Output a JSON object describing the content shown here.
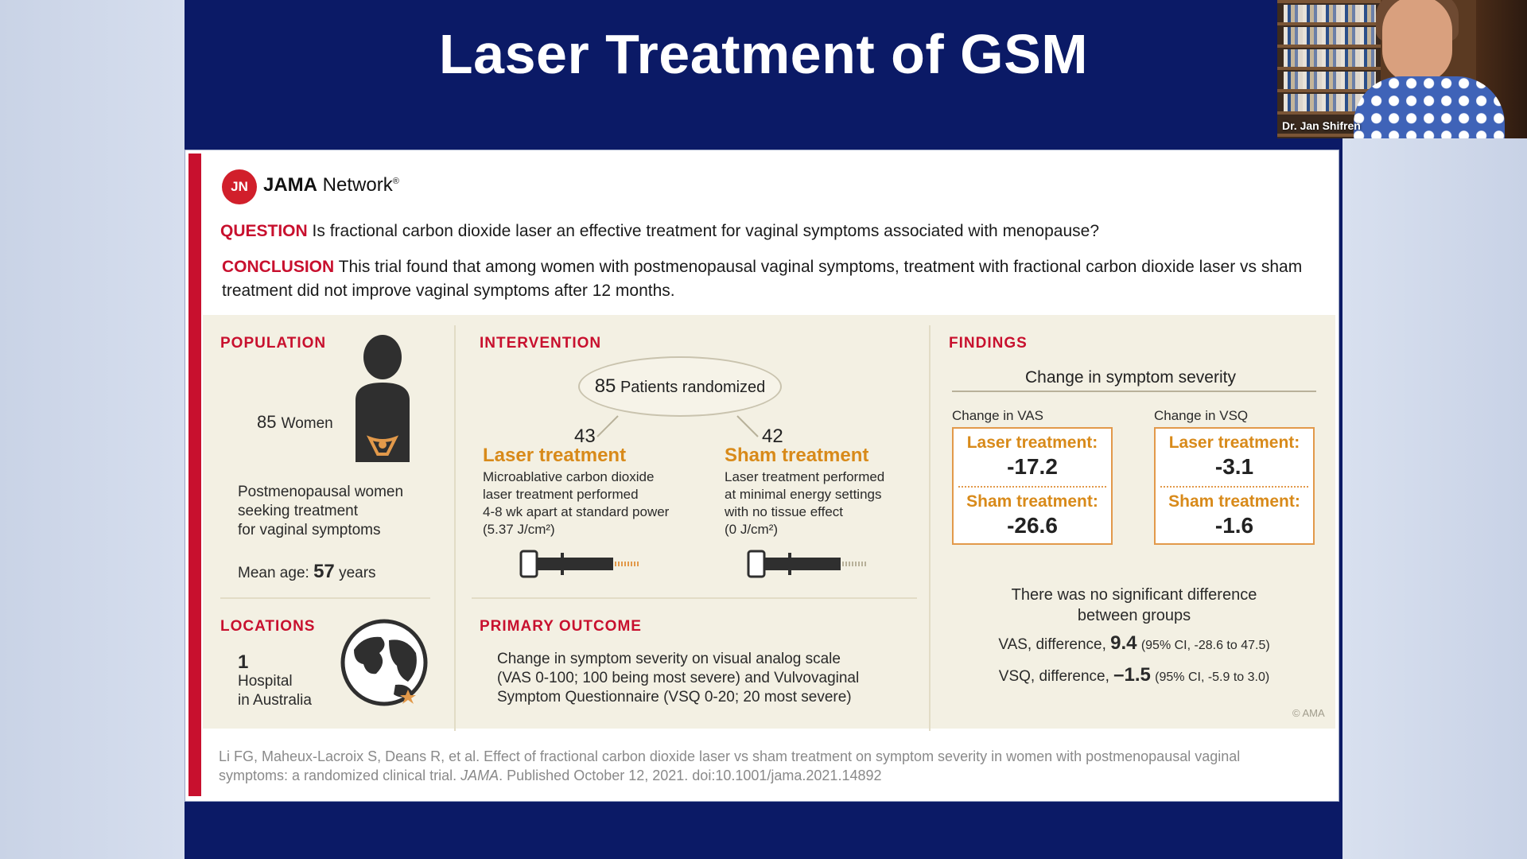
{
  "slide": {
    "title": "Laser Treatment of GSM"
  },
  "video": {
    "caller_name": "Dr. Jan Shifren"
  },
  "brand": {
    "logo": "JN",
    "name_bold": "JAMA",
    "name_rest": " Network",
    "tm": "®"
  },
  "question": {
    "label": "QUESTION",
    "text": "Is fractional carbon dioxide laser an effective treatment for vaginal symptoms associated with menopause?"
  },
  "conclusion": {
    "label": "CONCLUSION",
    "text": "This trial found that among women with postmenopausal vaginal symptoms, treatment with fractional carbon dioxide laser vs sham treatment did not improve vaginal symptoms after 12 months."
  },
  "population": {
    "label": "POPULATION",
    "count": "85",
    "count_unit": "Women",
    "description": [
      "Postmenopausal women",
      "seeking treatment",
      "for vaginal symptoms"
    ],
    "age_prefix": "Mean age:",
    "age_value": "57",
    "age_suffix": "years"
  },
  "locations": {
    "label": "LOCATIONS",
    "count": "1",
    "line1": "Hospital",
    "line2": "in Australia"
  },
  "intervention": {
    "label": "INTERVENTION",
    "randomized_count": "85",
    "randomized_text": "Patients randomized",
    "laser": {
      "count": "43",
      "title": "Laser treatment",
      "lines": [
        "Microablative carbon dioxide",
        "laser treatment performed",
        "4-8 wk apart at standard power",
        "(5.37 J/cm²)"
      ]
    },
    "sham": {
      "count": "42",
      "title": "Sham treatment",
      "lines": [
        "Laser treatment performed",
        "at minimal energy settings",
        "with no tissue effect",
        "(0 J/cm²)"
      ]
    }
  },
  "primary_outcome": {
    "label": "PRIMARY OUTCOME",
    "lines": [
      "Change in symptom severity on visual analog scale",
      "(VAS 0-100; 100 being most severe) and Vulvovaginal",
      "Symptom Questionnaire (VSQ 0-20; 20 most severe)"
    ]
  },
  "findings": {
    "label": "FINDINGS",
    "subtitle": "Change in symptom severity",
    "vas": {
      "heading": "Change in VAS",
      "laser_label": "Laser treatment:",
      "laser_value": "-17.2",
      "sham_label": "Sham treatment:",
      "sham_value": "-26.6"
    },
    "vsq": {
      "heading": "Change in VSQ",
      "laser_label": "Laser treatment:",
      "laser_value": "-3.1",
      "sham_label": "Sham treatment:",
      "sham_value": "-1.6"
    },
    "no_diff_line1": "There was no significant difference",
    "no_diff_line2": "between groups",
    "vas_diff_prefix": "VAS, difference,",
    "vas_diff_value": "9.4",
    "vas_diff_ci": "(95% CI, -28.6 to 47.5)",
    "vsq_diff_prefix": "VSQ, difference,",
    "vsq_diff_value": "–1.5",
    "vsq_diff_ci": "(95% CI, -5.9 to 3.0)"
  },
  "copyright": "© AMA",
  "citation": {
    "line1": "Li FG, Maheux-Lacroix S, Deans R, et al. Effect of fractional carbon dioxide laser vs sham treatment on symptom severity in women with postmenopausal vaginal",
    "line2_pre": "symptoms: a randomized clinical trial.",
    "line2_journal": "JAMA",
    "line2_post": ". Published October 12, 2021. doi:10.1001/jama.2021.14892"
  },
  "colors": {
    "navy": "#0b1a66",
    "jama_red": "#c8102e",
    "orange": "#d88a1a",
    "cream": "#f3f0e3"
  },
  "icons": [
    "person-icon",
    "globe-icon",
    "laser-device-icon",
    "sham-device-icon"
  ]
}
